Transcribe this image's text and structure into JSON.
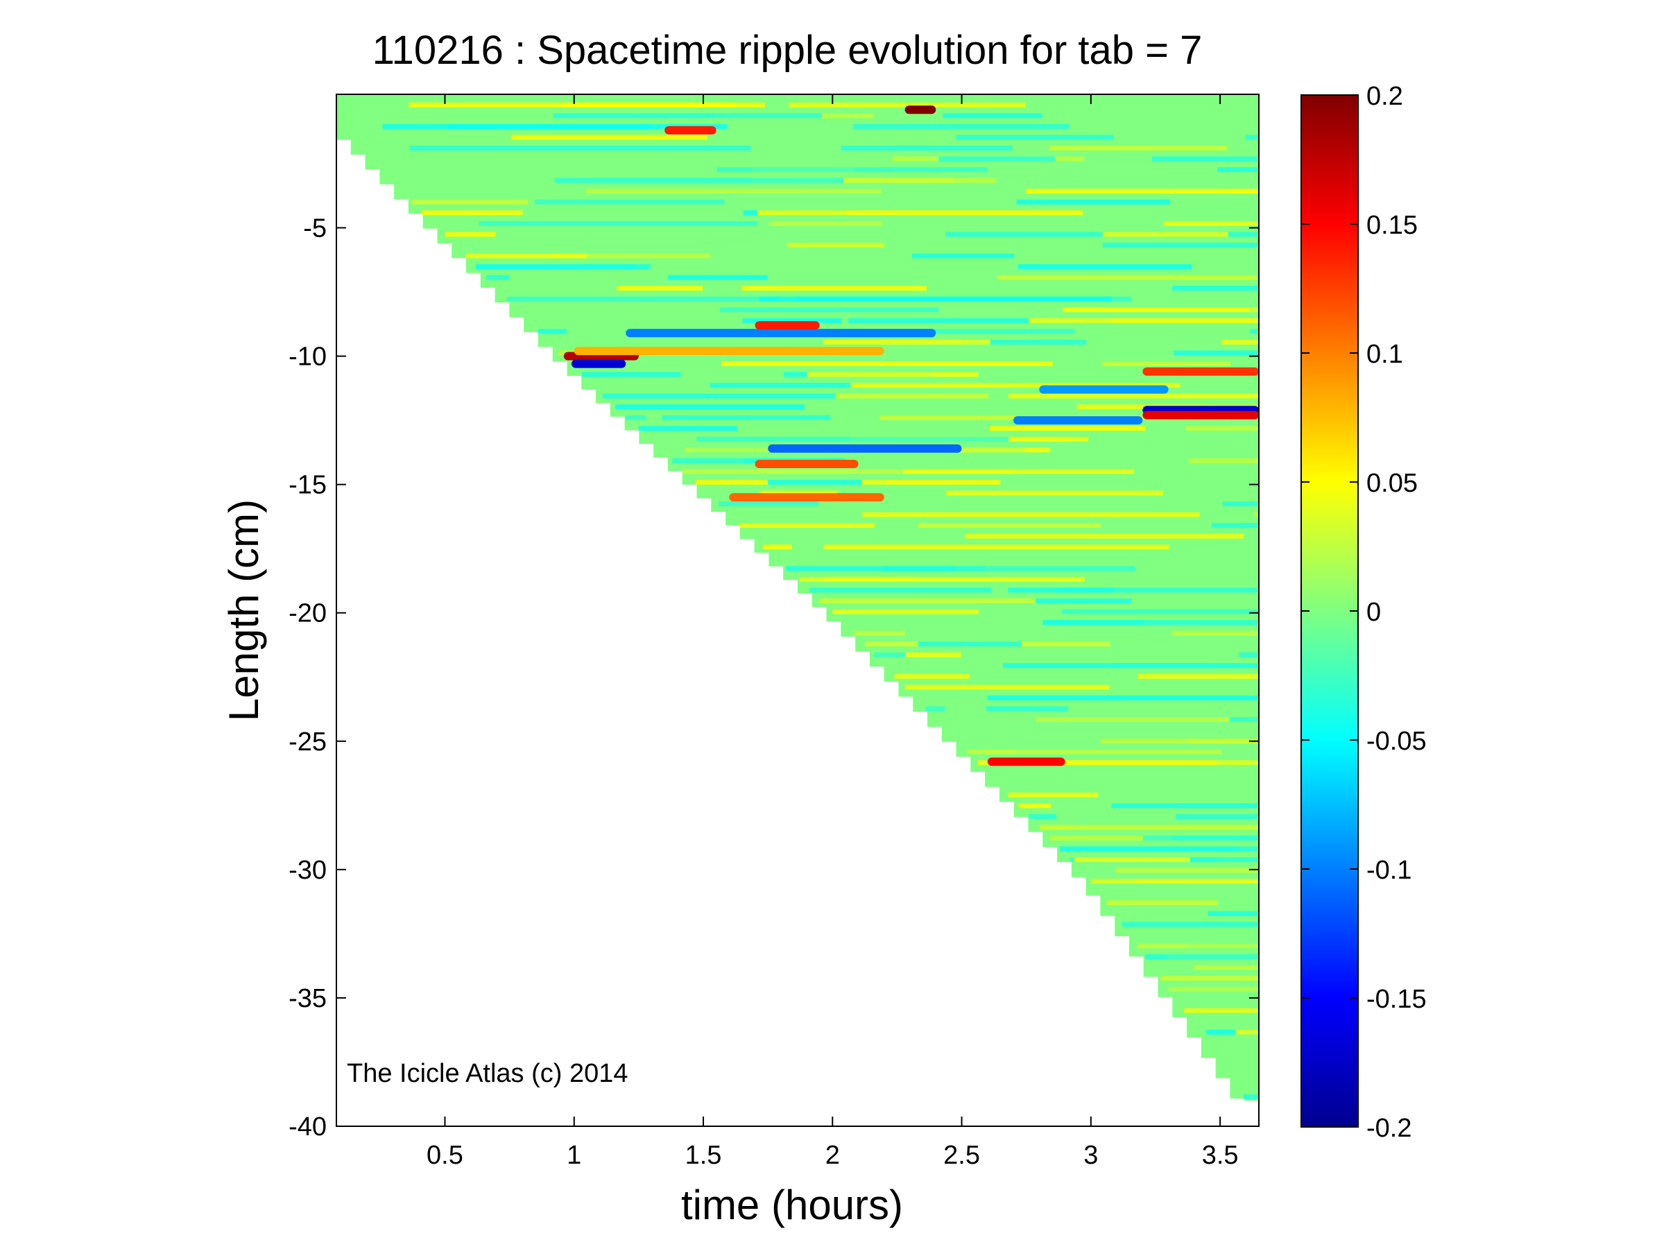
{
  "chart_data": {
    "type": "heatmap",
    "title": "110216 : Spacetime ripple evolution for tab = 7",
    "xlabel": "time (hours)",
    "ylabel": "Length (cm)",
    "xlim": [
      0.08,
      3.65
    ],
    "ylim": [
      -40,
      0.2
    ],
    "xticks": [
      0.5,
      1,
      1.5,
      2,
      2.5,
      3,
      3.5
    ],
    "xtick_labels": [
      "0.5",
      "1",
      "1.5",
      "2",
      "2.5",
      "3",
      "3.5"
    ],
    "yticks": [
      -5,
      -10,
      -15,
      -20,
      -25,
      -30,
      -35,
      -40
    ],
    "ytick_labels": [
      "-5",
      "-10",
      "-15",
      "-20",
      "-25",
      "-30",
      "-35",
      "-40"
    ],
    "colorbar": {
      "clim": [
        -0.2,
        0.2
      ],
      "colormap": "jet",
      "ticks": [
        0.2,
        0.15,
        0.1,
        0.05,
        0,
        -0.05,
        -0.1,
        -0.15,
        -0.2
      ],
      "tick_labels": [
        "0.2",
        "0.15",
        "0.1",
        "0.05",
        "0",
        "-0.05",
        "-0.1",
        "-0.15",
        "-0.2"
      ]
    },
    "data_region": {
      "description_of_shape": "triangular: icicle length grows with time",
      "edge_points": [
        {
          "time": 0.08,
          "length": -1.0
        },
        {
          "time": 1.0,
          "length": -10.5
        },
        {
          "time": 2.0,
          "length": -20.0
        },
        {
          "time": 3.0,
          "length": -30.5
        },
        {
          "time": 3.6,
          "length": -39.0
        }
      ]
    },
    "features": [
      {
        "t0": 0.85,
        "t1": 1.25,
        "length": -10.0,
        "value": 0.18
      },
      {
        "t0": 0.9,
        "t1": 1.2,
        "length": -10.3,
        "value": -0.17
      },
      {
        "t0": 1.0,
        "t1": 2.2,
        "length": -9.8,
        "value": 0.08
      },
      {
        "t0": 1.2,
        "t1": 2.4,
        "length": -9.1,
        "value": -0.1
      },
      {
        "t0": 1.7,
        "t1": 1.95,
        "length": -8.8,
        "value": 0.14
      },
      {
        "t0": 1.35,
        "t1": 1.55,
        "length": -1.2,
        "value": 0.14
      },
      {
        "t0": 2.28,
        "t1": 2.4,
        "length": -0.4,
        "value": 0.2
      },
      {
        "t0": 3.2,
        "t1": 3.65,
        "length": -12.1,
        "value": -0.17
      },
      {
        "t0": 3.2,
        "t1": 3.65,
        "length": -12.3,
        "value": 0.16
      },
      {
        "t0": 3.2,
        "t1": 3.65,
        "length": -10.6,
        "value": 0.13
      },
      {
        "t0": 1.75,
        "t1": 2.5,
        "length": -13.6,
        "value": -0.11
      },
      {
        "t0": 1.7,
        "t1": 2.1,
        "length": -14.2,
        "value": 0.12
      },
      {
        "t0": 1.6,
        "t1": 2.2,
        "length": -15.5,
        "value": 0.11
      },
      {
        "t0": 2.6,
        "t1": 2.9,
        "length": -25.8,
        "value": 0.15
      },
      {
        "t0": 2.8,
        "t1": 3.3,
        "length": -11.3,
        "value": -0.09
      },
      {
        "t0": 2.7,
        "t1": 3.2,
        "length": -12.5,
        "value": -0.1
      }
    ],
    "annotation": "The Icicle Atlas (c) 2014"
  }
}
